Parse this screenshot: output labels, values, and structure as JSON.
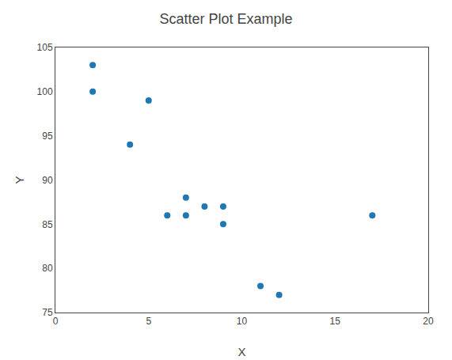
{
  "chart_data": {
    "type": "scatter",
    "title": "Scatter Plot Example",
    "xlabel": "X",
    "ylabel": "Y",
    "x": [
      2,
      2,
      4,
      5,
      6,
      7,
      7,
      8,
      9,
      9,
      11,
      12,
      17
    ],
    "y": [
      103,
      100,
      94,
      99,
      86,
      88,
      86,
      87,
      87,
      85,
      78,
      77,
      86
    ],
    "color": "#1f77b4",
    "marker": "circle",
    "xlim": [
      0,
      20
    ],
    "xticks": [
      0,
      5,
      10,
      15,
      20
    ],
    "ylim": [
      75,
      105
    ],
    "yticks": [
      75,
      80,
      85,
      90,
      95,
      100,
      105
    ],
    "grid": false
  }
}
